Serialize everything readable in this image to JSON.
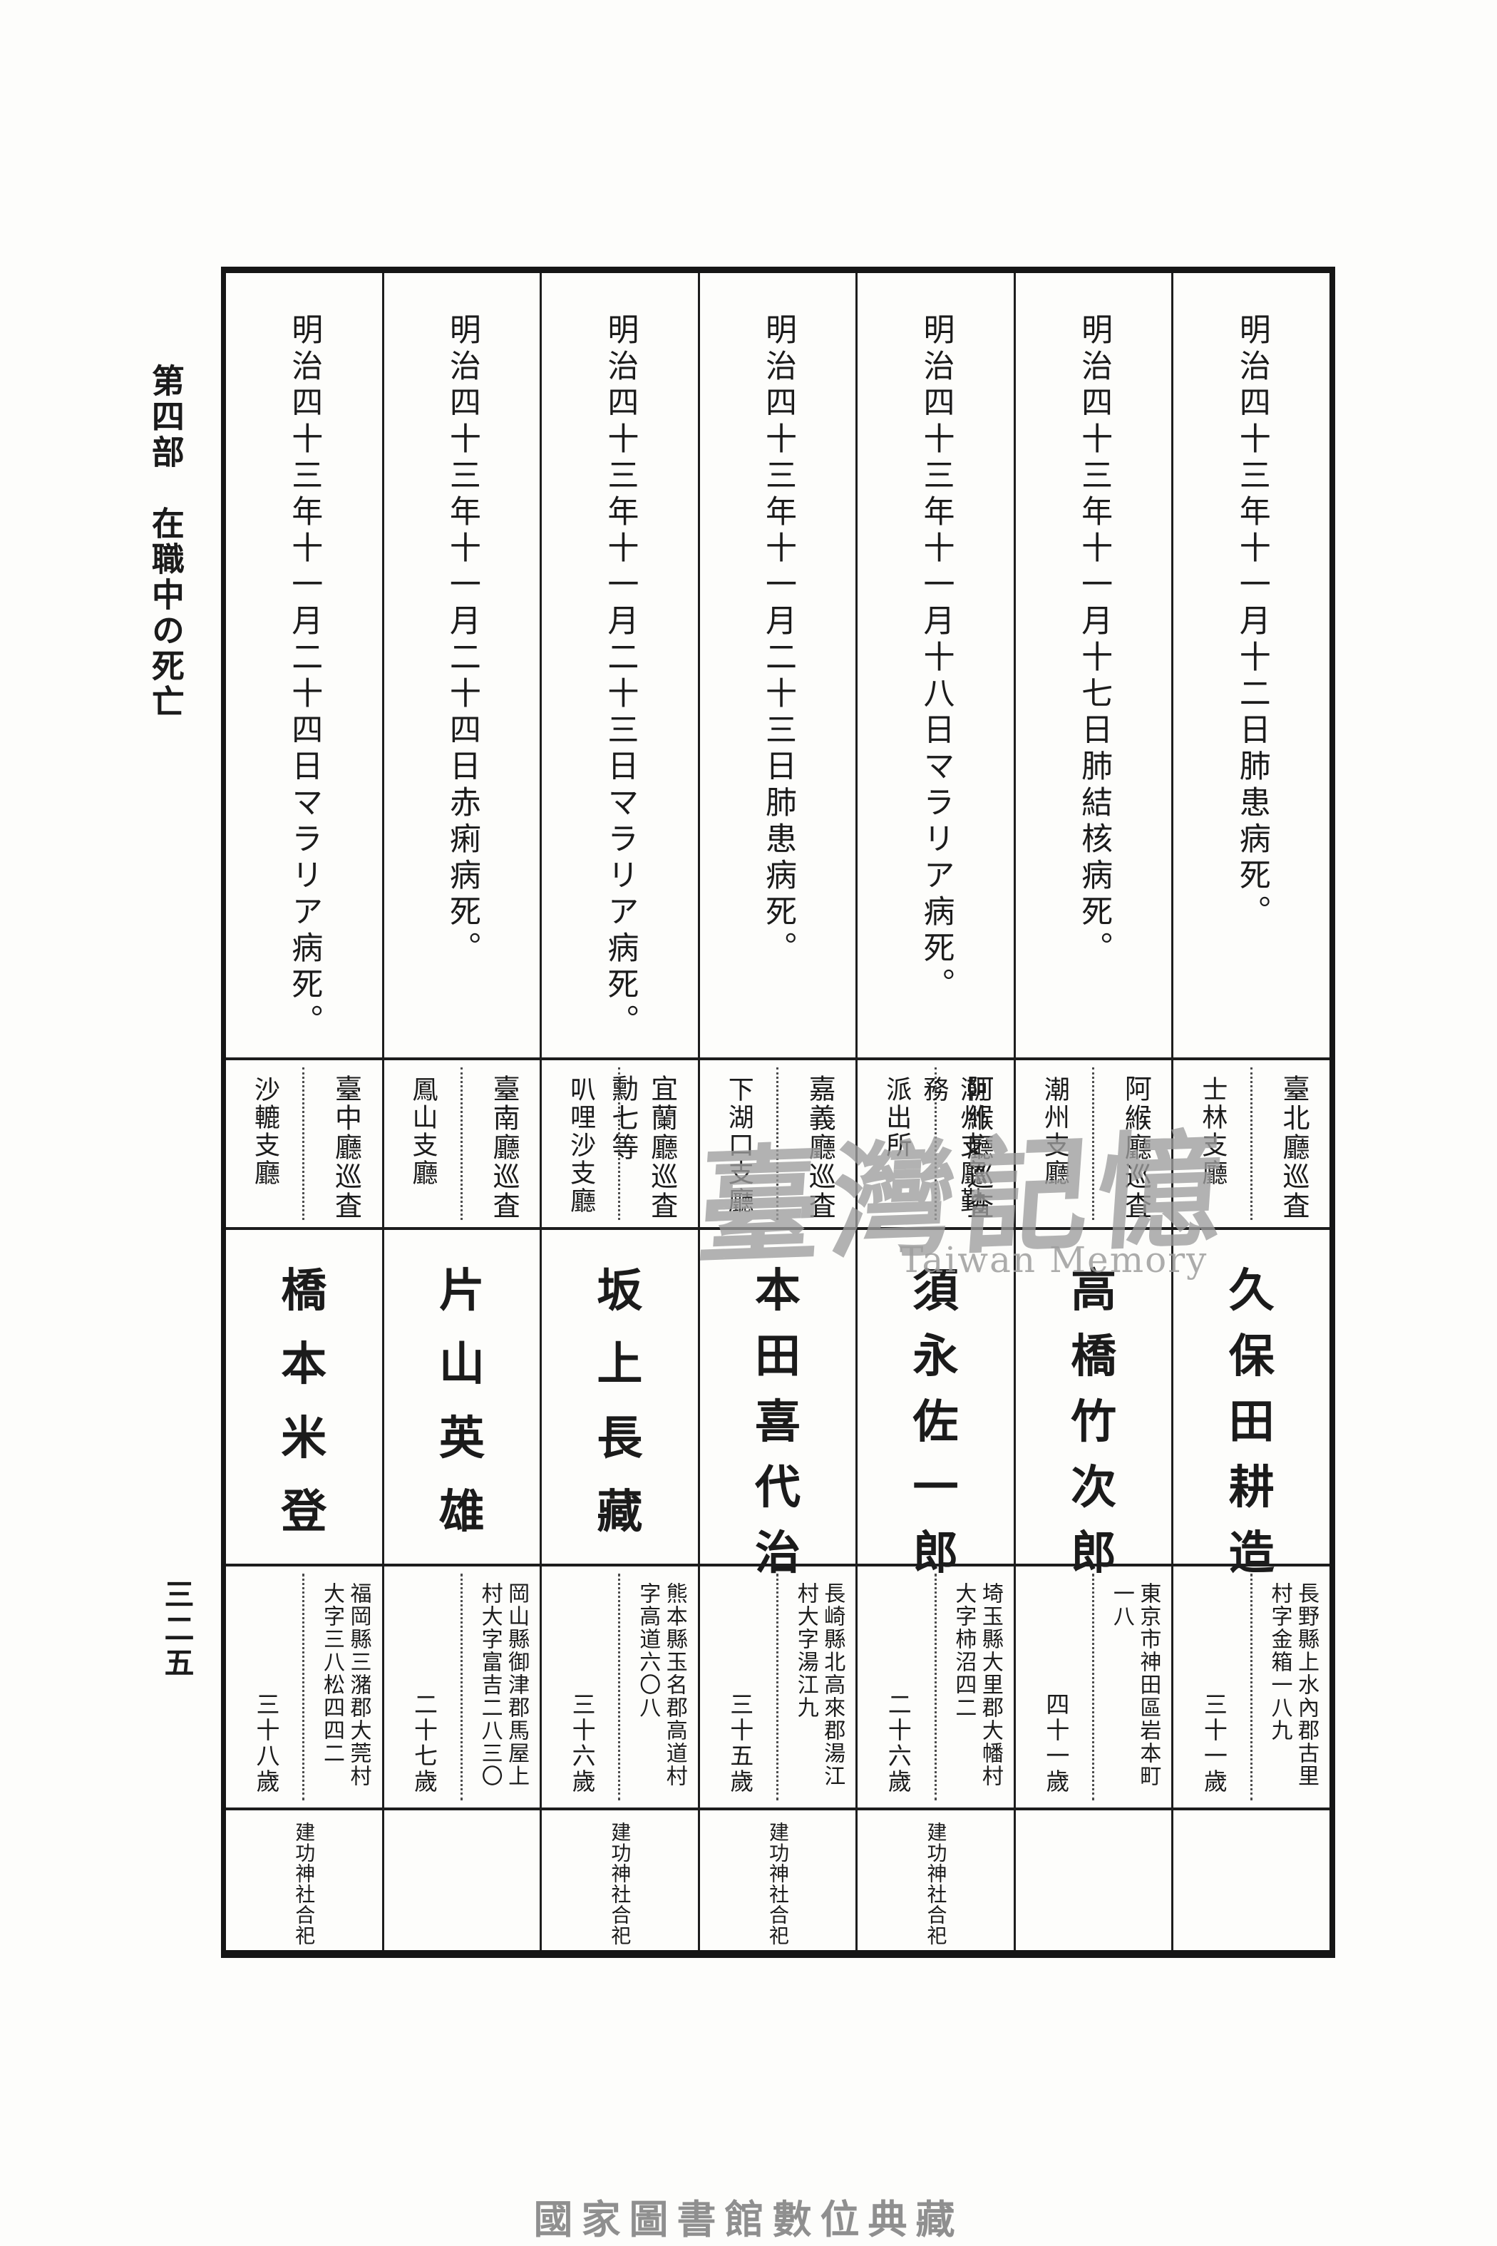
{
  "page": {
    "section_header": "第四部　在職中の死亡",
    "page_number": "三二五",
    "footer_caption": "國家圖書館數位典藏",
    "watermark": {
      "cjk": "臺灣記憶",
      "latin": "Taiwan Memory"
    },
    "colors": {
      "ink": "#1b1b1b",
      "paper": "#fdfdfb",
      "watermark": "#9e9e9e",
      "caption": "#8f8f8f"
    }
  },
  "table": {
    "people": [
      {
        "death_date": "明治四十三年十一月十二日肺患病死。",
        "rank_lines": [
          "臺北廳巡査"
        ],
        "station_lines": [
          "士林支廳"
        ],
        "name": "久保田耕造",
        "address_lines": [
          "長野縣上水內郡古里",
          "村字金箱一八九"
        ],
        "age": "三十一歲",
        "shrine": ""
      },
      {
        "death_date": "明治四十三年十一月十七日肺結核病死。",
        "rank_lines": [
          "阿緱廳巡査"
        ],
        "station_lines": [
          "潮州支廳"
        ],
        "name": "高橋竹次郎",
        "address_lines": [
          "東京市神田區岩本町",
          "一八"
        ],
        "age": "四十一歲",
        "shrine": ""
      },
      {
        "death_date": "明治四十三年十一月十八日マラリア病死。",
        "rank_lines": [
          "阿緱廳巡査"
        ],
        "station_lines": [
          "潮州支廳勤務",
          "派出所"
        ],
        "name": "須永佐一郎",
        "address_lines": [
          "埼玉縣大里郡大幡村",
          "大字柿沼四二"
        ],
        "age": "二十六歲",
        "shrine": "建功神社合祀"
      },
      {
        "death_date": "明治四十三年十一月二十三日肺患病死。",
        "rank_lines": [
          "嘉義廳巡査"
        ],
        "station_lines": [
          "下湖口支廳"
        ],
        "name": "本田喜代治",
        "address_lines": [
          "長崎縣北高來郡湯江",
          "村大字湯江九"
        ],
        "age": "三十五歲",
        "shrine": "建功神社合祀"
      },
      {
        "death_date": "明治四十三年十一月二十三日マラリア病死。",
        "rank_lines": [
          "宜蘭廳巡査",
          "勳七等"
        ],
        "station_lines": [
          "叭哩沙支廳"
        ],
        "name": "坂上長藏",
        "address_lines": [
          "熊本縣玉名郡高道村",
          "字高道六〇八"
        ],
        "age": "三十六歲",
        "shrine": "建功神社合祀"
      },
      {
        "death_date": "明治四十三年十一月二十四日赤痢病死。",
        "rank_lines": [
          "臺南廳巡査"
        ],
        "station_lines": [
          "鳳山支廳"
        ],
        "name": "片山英雄",
        "address_lines": [
          "岡山縣御津郡馬屋上",
          "村大字富吉二八三〇"
        ],
        "age": "二十七歲",
        "shrine": ""
      },
      {
        "death_date": "明治四十三年十一月二十四日マラリア病死。",
        "rank_lines": [
          "臺中廳巡査"
        ],
        "station_lines": [
          "沙轆支廳"
        ],
        "name": "橋本米登",
        "address_lines": [
          "福岡縣三潴郡大莞村",
          "大字三八松四四二"
        ],
        "age": "三十八歲",
        "shrine": "建功神社合祀"
      }
    ]
  }
}
